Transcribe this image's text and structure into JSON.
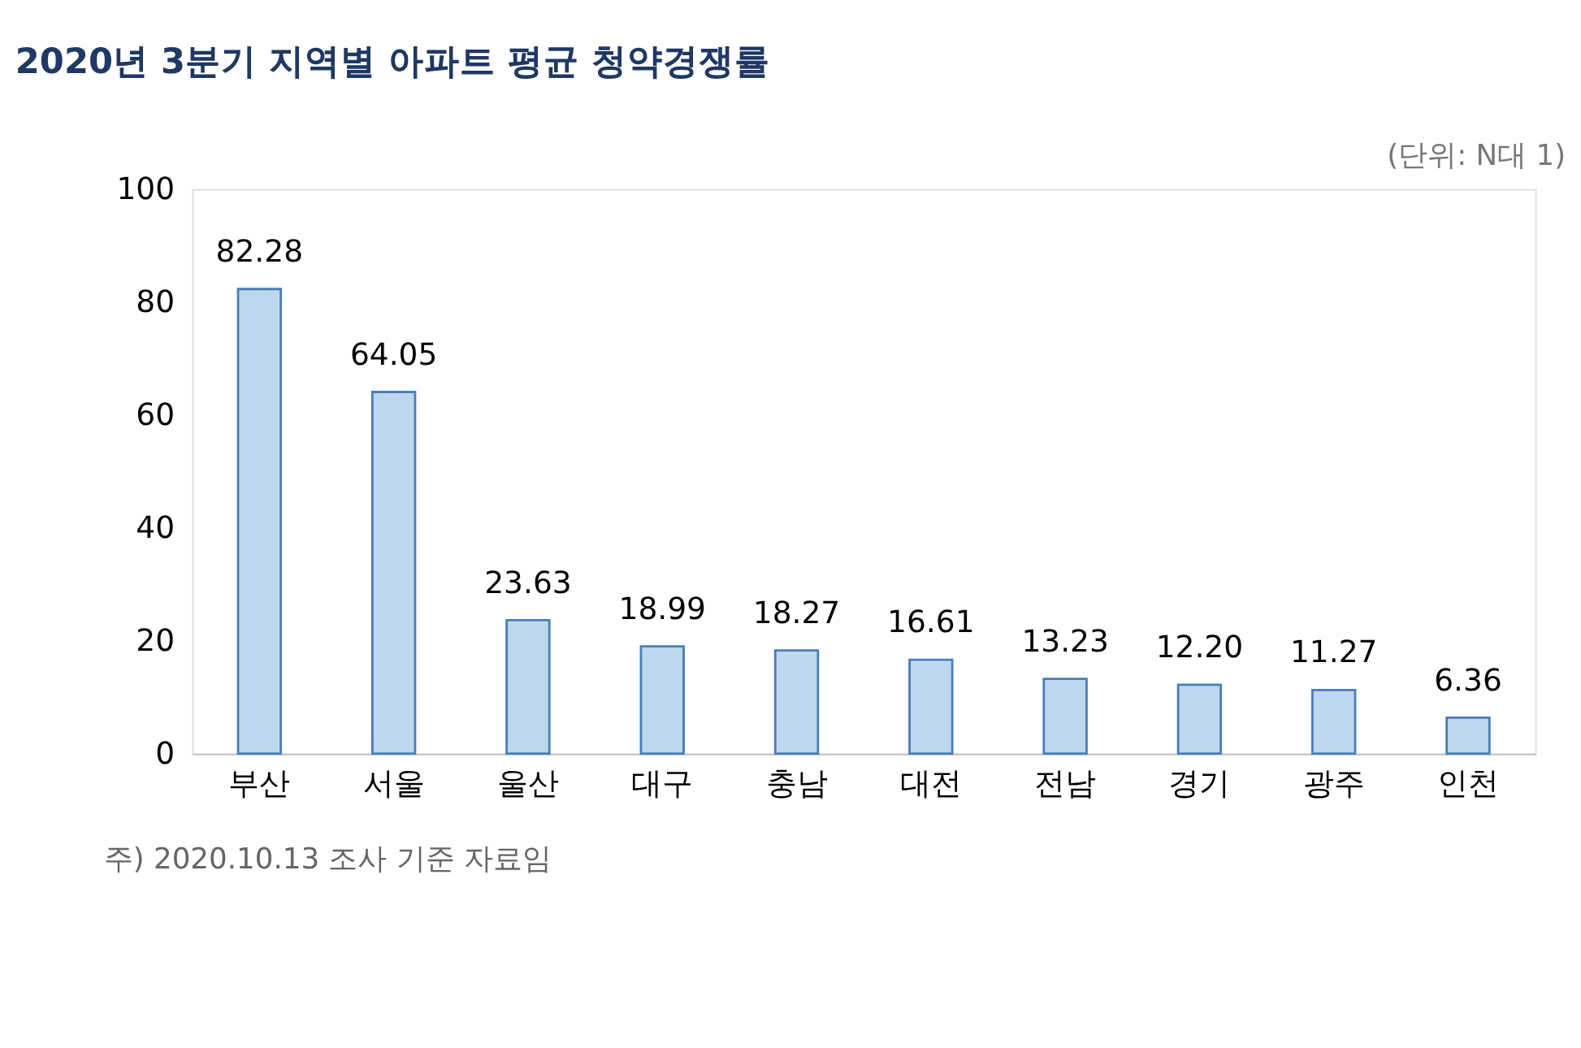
{
  "chart_data": {
    "type": "bar",
    "title": "2020년 3분기 지역별 아파트 평균 청약경쟁률",
    "subtitle": "(단위: N대 1)",
    "categories": [
      "부산",
      "서울",
      "울산",
      "대구",
      "충남",
      "대전",
      "전남",
      "경기",
      "광주",
      "인천"
    ],
    "values": [
      82.28,
      64.05,
      23.63,
      18.99,
      18.27,
      16.61,
      13.23,
      12.2,
      11.27,
      6.36
    ],
    "value_labels": [
      "82.28",
      "64.05",
      "23.63",
      "18.99",
      "18.27",
      "16.61",
      "13.23",
      "12.20",
      "11.27",
      "6.36"
    ],
    "color": "#bdd7ee",
    "ylim": [
      0,
      100
    ],
    "yticks": [
      0,
      20,
      40,
      60,
      80,
      100
    ],
    "grid": false,
    "annotations": [
      "주) 2020.10.13 조사 기준 자료임"
    ]
  }
}
